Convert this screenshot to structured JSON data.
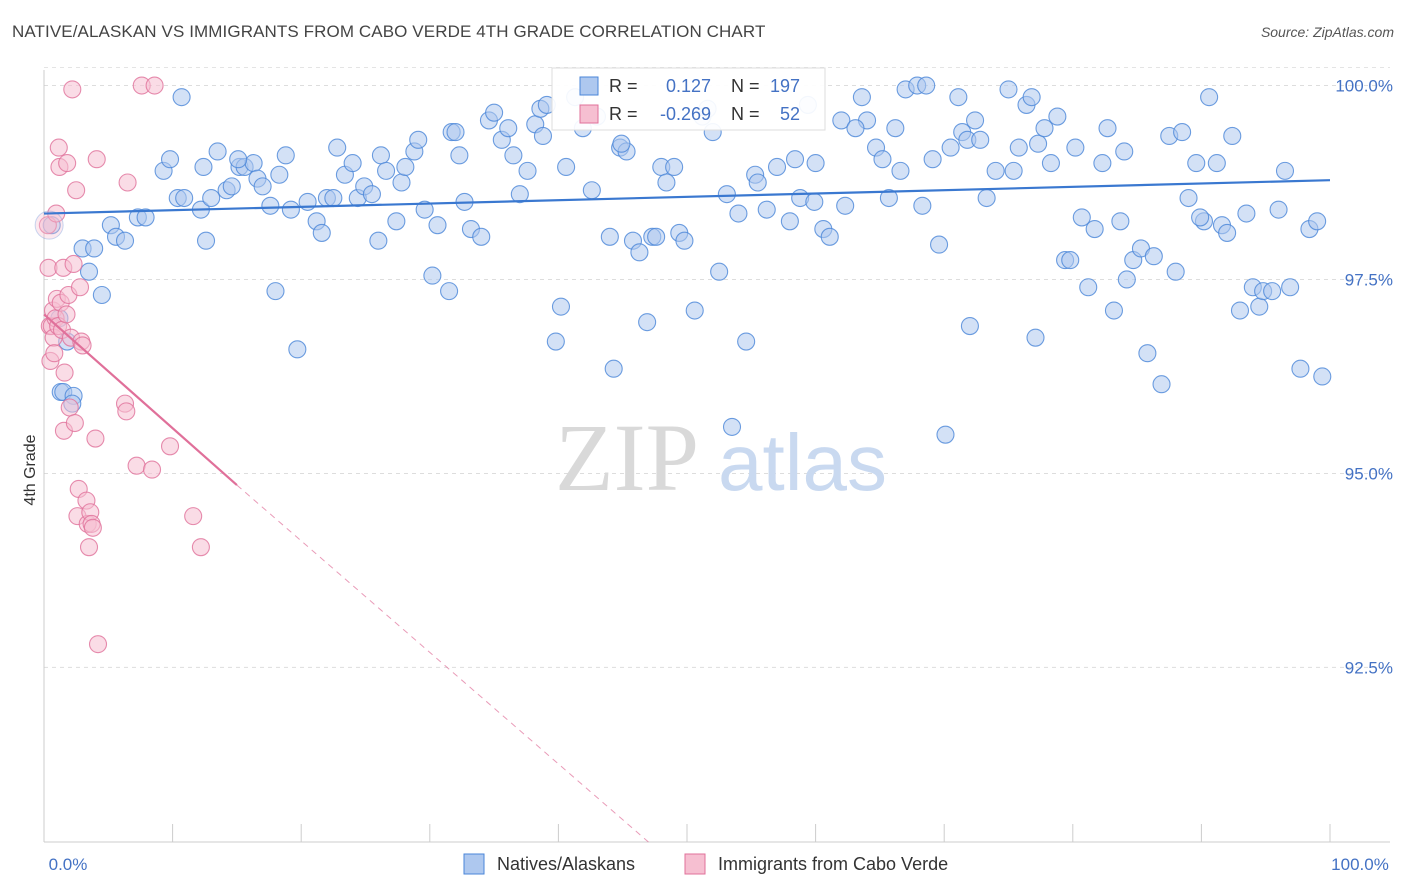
{
  "title": "NATIVE/ALASKAN VS IMMIGRANTS FROM CABO VERDE 4TH GRADE CORRELATION CHART",
  "source": "Source: ZipAtlas.com",
  "watermark": {
    "zip": "ZIP",
    "atlas": "atlas"
  },
  "chart_data": {
    "type": "scatter",
    "ylabel": "4th Grade",
    "xlabel": "",
    "xlim": [
      0,
      100
    ],
    "ylim": [
      90.25,
      100.2
    ],
    "x_tick_labels": [
      "0.0%",
      "100.0%"
    ],
    "y_ticks": [
      {
        "value": 100.0,
        "label": "100.0%"
      },
      {
        "value": 97.5,
        "label": "97.5%"
      },
      {
        "value": 95.0,
        "label": "95.0%"
      },
      {
        "value": 92.5,
        "label": "92.5%"
      }
    ],
    "grid": true,
    "colors": {
      "blue": "#4a86d8",
      "blue_fill": "#aec8ef",
      "pink": "#e0709a",
      "pink_fill": "#f6bfd1",
      "axis_text": "#4472c4"
    },
    "stats": [
      {
        "r_label": "R =",
        "r": "0.127",
        "n_label": "N =",
        "n": "197"
      },
      {
        "r_label": "R =",
        "r": "-0.269",
        "n_label": "N =",
        "n": "52"
      }
    ],
    "series": [
      {
        "name": "Natives/Alaskans",
        "color": "blue",
        "trend": {
          "x": [
            0,
            100
          ],
          "y": [
            98.35,
            98.78
          ]
        },
        "points": [
          [
            0.6,
            98.2
          ],
          [
            1.2,
            97.0
          ],
          [
            1.3,
            96.05
          ],
          [
            1.5,
            96.05
          ],
          [
            1.8,
            96.7
          ],
          [
            2.3,
            96.0
          ],
          [
            2.2,
            95.9
          ],
          [
            3.0,
            97.9
          ],
          [
            3.5,
            97.6
          ],
          [
            3.9,
            97.9
          ],
          [
            4.5,
            97.3
          ],
          [
            5.2,
            98.2
          ],
          [
            5.6,
            98.05
          ],
          [
            6.3,
            98.0
          ],
          [
            7.3,
            98.3
          ],
          [
            7.9,
            98.3
          ],
          [
            9.3,
            98.9
          ],
          [
            9.8,
            99.05
          ],
          [
            10.4,
            98.55
          ],
          [
            10.9,
            98.55
          ],
          [
            12.2,
            98.4
          ],
          [
            12.4,
            98.95
          ],
          [
            12.6,
            98.0
          ],
          [
            13.0,
            98.55
          ],
          [
            13.5,
            99.15
          ],
          [
            14.2,
            98.65
          ],
          [
            14.6,
            98.7
          ],
          [
            15.2,
            98.95
          ],
          [
            15.6,
            98.95
          ],
          [
            16.3,
            99.0
          ],
          [
            16.6,
            98.8
          ],
          [
            17.0,
            98.7
          ],
          [
            17.6,
            98.45
          ],
          [
            18.3,
            98.85
          ],
          [
            18.8,
            99.1
          ],
          [
            19.2,
            98.4
          ],
          [
            19.7,
            96.6
          ],
          [
            20.5,
            98.5
          ],
          [
            21.2,
            98.25
          ],
          [
            21.6,
            98.1
          ],
          [
            22.0,
            98.55
          ],
          [
            22.5,
            98.55
          ],
          [
            22.8,
            99.2
          ],
          [
            23.4,
            98.85
          ],
          [
            24.0,
            99.0
          ],
          [
            24.4,
            98.55
          ],
          [
            24.9,
            98.7
          ],
          [
            25.5,
            98.6
          ],
          [
            26.2,
            99.1
          ],
          [
            26.6,
            98.9
          ],
          [
            27.4,
            98.25
          ],
          [
            27.8,
            98.75
          ],
          [
            28.1,
            98.95
          ],
          [
            28.8,
            99.15
          ],
          [
            29.1,
            99.3
          ],
          [
            29.6,
            98.4
          ],
          [
            30.6,
            98.2
          ],
          [
            30.2,
            97.55
          ],
          [
            31.5,
            97.35
          ],
          [
            31.7,
            99.4
          ],
          [
            32.0,
            99.4
          ],
          [
            32.3,
            99.1
          ],
          [
            32.7,
            98.5
          ],
          [
            33.2,
            98.15
          ],
          [
            34.0,
            98.05
          ],
          [
            34.6,
            99.55
          ],
          [
            35.0,
            99.65
          ],
          [
            35.6,
            99.3
          ],
          [
            36.1,
            99.45
          ],
          [
            36.5,
            99.1
          ],
          [
            37.0,
            98.6
          ],
          [
            37.6,
            98.9
          ],
          [
            38.2,
            99.5
          ],
          [
            38.6,
            99.7
          ],
          [
            39.1,
            99.75
          ],
          [
            39.8,
            96.7
          ],
          [
            40.2,
            97.15
          ],
          [
            40.6,
            98.95
          ],
          [
            41.3,
            99.85
          ],
          [
            41.9,
            99.45
          ],
          [
            42.6,
            98.65
          ],
          [
            43.0,
            99.6
          ],
          [
            44.0,
            98.05
          ],
          [
            44.3,
            96.35
          ],
          [
            44.8,
            99.2
          ],
          [
            45.3,
            99.15
          ],
          [
            45.8,
            98.0
          ],
          [
            46.3,
            97.85
          ],
          [
            46.9,
            96.95
          ],
          [
            47.3,
            98.05
          ],
          [
            47.6,
            98.05
          ],
          [
            48.0,
            98.95
          ],
          [
            48.4,
            98.75
          ],
          [
            49.0,
            98.95
          ],
          [
            49.4,
            98.1
          ],
          [
            49.8,
            98.0
          ],
          [
            50.6,
            97.1
          ],
          [
            51.2,
            99.6
          ],
          [
            51.6,
            99.7
          ],
          [
            52.0,
            99.4
          ],
          [
            52.5,
            97.6
          ],
          [
            53.1,
            98.6
          ],
          [
            53.5,
            95.6
          ],
          [
            54.0,
            98.35
          ],
          [
            54.6,
            96.7
          ],
          [
            55.3,
            98.85
          ],
          [
            56.2,
            98.4
          ],
          [
            57.0,
            98.95
          ],
          [
            58.0,
            98.25
          ],
          [
            58.4,
            99.05
          ],
          [
            58.8,
            98.55
          ],
          [
            59.4,
            99.75
          ],
          [
            59.9,
            98.5
          ],
          [
            60.0,
            99.0
          ],
          [
            60.6,
            98.15
          ],
          [
            61.1,
            98.05
          ],
          [
            62.0,
            99.55
          ],
          [
            62.3,
            98.45
          ],
          [
            63.6,
            99.85
          ],
          [
            64.0,
            99.55
          ],
          [
            64.7,
            99.2
          ],
          [
            65.2,
            99.05
          ],
          [
            65.7,
            98.55
          ],
          [
            66.2,
            99.45
          ],
          [
            66.6,
            98.9
          ],
          [
            67.0,
            99.95
          ],
          [
            67.9,
            100.0
          ],
          [
            68.3,
            98.45
          ],
          [
            68.6,
            100.0
          ],
          [
            69.1,
            99.05
          ],
          [
            69.6,
            97.95
          ],
          [
            70.1,
            95.5
          ],
          [
            70.5,
            99.2
          ],
          [
            71.1,
            99.85
          ],
          [
            71.4,
            99.4
          ],
          [
            71.8,
            99.3
          ],
          [
            72.4,
            99.55
          ],
          [
            72.8,
            99.3
          ],
          [
            73.3,
            98.55
          ],
          [
            74.0,
            98.9
          ],
          [
            75.0,
            99.95
          ],
          [
            75.4,
            98.9
          ],
          [
            75.8,
            99.2
          ],
          [
            76.4,
            99.75
          ],
          [
            76.8,
            99.85
          ],
          [
            77.3,
            99.25
          ],
          [
            77.8,
            99.45
          ],
          [
            78.3,
            99.0
          ],
          [
            78.8,
            99.6
          ],
          [
            79.4,
            97.75
          ],
          [
            79.8,
            97.75
          ],
          [
            80.2,
            99.2
          ],
          [
            80.7,
            98.3
          ],
          [
            81.2,
            97.4
          ],
          [
            81.7,
            98.15
          ],
          [
            82.3,
            99.0
          ],
          [
            82.7,
            99.45
          ],
          [
            83.2,
            97.1
          ],
          [
            83.7,
            98.25
          ],
          [
            84.2,
            97.5
          ],
          [
            84.7,
            97.75
          ],
          [
            85.3,
            97.9
          ],
          [
            85.8,
            96.55
          ],
          [
            86.3,
            97.8
          ],
          [
            86.9,
            96.15
          ],
          [
            87.5,
            99.35
          ],
          [
            88.0,
            97.6
          ],
          [
            88.5,
            99.4
          ],
          [
            89.0,
            98.55
          ],
          [
            89.6,
            99.0
          ],
          [
            90.2,
            98.25
          ],
          [
            90.6,
            99.85
          ],
          [
            91.2,
            99.0
          ],
          [
            91.6,
            98.2
          ],
          [
            92.0,
            98.1
          ],
          [
            92.4,
            99.35
          ],
          [
            93.0,
            97.1
          ],
          [
            93.5,
            98.35
          ],
          [
            94.0,
            97.4
          ],
          [
            94.5,
            97.15
          ],
          [
            94.8,
            97.35
          ],
          [
            95.5,
            97.35
          ],
          [
            96.0,
            98.4
          ],
          [
            96.5,
            98.9
          ],
          [
            96.9,
            97.4
          ],
          [
            97.7,
            96.35
          ],
          [
            98.4,
            98.15
          ],
          [
            99.0,
            98.25
          ],
          [
            99.4,
            96.25
          ],
          [
            89.9,
            98.3
          ],
          [
            63.1,
            99.45
          ],
          [
            55.5,
            98.75
          ],
          [
            18.0,
            97.35
          ],
          [
            10.7,
            99.85
          ],
          [
            44.9,
            99.25
          ],
          [
            72.0,
            96.9
          ],
          [
            26.0,
            98.0
          ],
          [
            38.8,
            99.35
          ],
          [
            77.1,
            96.75
          ],
          [
            15.1,
            99.05
          ],
          [
            84.0,
            99.15
          ]
        ]
      },
      {
        "name": "Immigrants from Cabo Verde",
        "color": "pink",
        "trend": {
          "x": [
            0,
            15
          ],
          "y": [
            97.05,
            94.85
          ]
        },
        "trend_ext": {
          "x": [
            15,
            47
          ],
          "y": [
            94.85,
            90.25
          ]
        },
        "points": [
          [
            0.3,
            98.2
          ],
          [
            0.35,
            97.65
          ],
          [
            0.45,
            96.9
          ],
          [
            0.5,
            96.45
          ],
          [
            0.6,
            96.9
          ],
          [
            0.7,
            97.1
          ],
          [
            0.75,
            96.75
          ],
          [
            0.8,
            96.55
          ],
          [
            0.9,
            97.0
          ],
          [
            0.95,
            98.35
          ],
          [
            1.0,
            97.25
          ],
          [
            1.1,
            96.9
          ],
          [
            1.15,
            99.2
          ],
          [
            1.2,
            98.95
          ],
          [
            1.3,
            97.2
          ],
          [
            1.4,
            96.85
          ],
          [
            1.5,
            97.65
          ],
          [
            1.55,
            95.55
          ],
          [
            1.6,
            96.3
          ],
          [
            1.75,
            97.05
          ],
          [
            1.8,
            99.0
          ],
          [
            1.9,
            97.3
          ],
          [
            2.0,
            95.85
          ],
          [
            2.1,
            96.75
          ],
          [
            2.2,
            99.95
          ],
          [
            2.3,
            97.7
          ],
          [
            2.4,
            95.65
          ],
          [
            2.5,
            98.65
          ],
          [
            2.6,
            94.45
          ],
          [
            2.7,
            94.8
          ],
          [
            2.8,
            97.4
          ],
          [
            2.9,
            96.7
          ],
          [
            3.0,
            96.65
          ],
          [
            3.3,
            94.65
          ],
          [
            3.4,
            94.35
          ],
          [
            3.5,
            94.05
          ],
          [
            3.6,
            94.5
          ],
          [
            3.7,
            94.35
          ],
          [
            3.8,
            94.3
          ],
          [
            4.0,
            95.45
          ],
          [
            4.1,
            99.05
          ],
          [
            4.2,
            92.8
          ],
          [
            6.3,
            95.9
          ],
          [
            6.4,
            95.8
          ],
          [
            6.5,
            98.75
          ],
          [
            7.2,
            95.1
          ],
          [
            7.6,
            100.0
          ],
          [
            8.4,
            95.05
          ],
          [
            8.6,
            100.0
          ],
          [
            9.8,
            95.35
          ],
          [
            11.6,
            94.45
          ],
          [
            12.2,
            94.05
          ]
        ]
      }
    ]
  },
  "legend": [
    "Natives/Alaskans",
    "Immigrants from Cabo Verde"
  ]
}
